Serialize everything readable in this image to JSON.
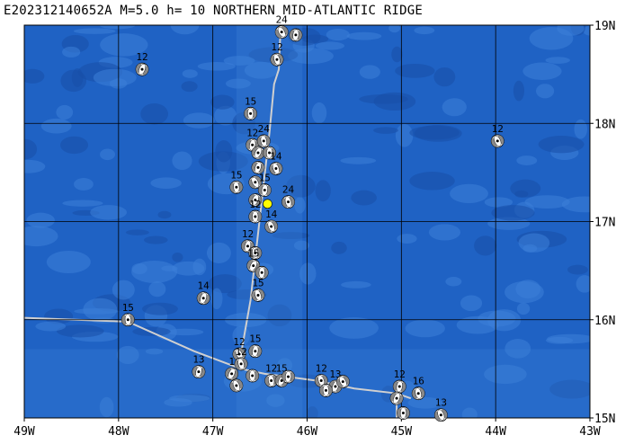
{
  "title": "E202312140652A M=5.0 h= 10 NORTHERN MID-ATLANTIC RIDGE",
  "colors": {
    "ocean": "#1f62c4",
    "ocean_shallow": "#3c80d8",
    "ocean_deep": "#174fa8",
    "grid": "#000000",
    "plate_boundary": "#d0d0d0",
    "epicenter": "#ffff00"
  },
  "map": {
    "lon_range": [
      -49,
      -43
    ],
    "lat_range": [
      15,
      19
    ],
    "lon_labels": [
      "49W",
      "48W",
      "47W",
      "46W",
      "45W",
      "44W",
      "43W"
    ],
    "lat_labels": [
      "15N",
      "16N",
      "17N",
      "18N",
      "19N"
    ],
    "epicenter": {
      "lon": -46.42,
      "lat": 17.18,
      "symbol": "star-dot"
    },
    "plate_boundary": [
      [
        [
          -49.0,
          16.02
        ],
        [
          -47.9,
          15.98
        ],
        [
          -47.2,
          15.68
        ],
        [
          -46.7,
          15.5
        ],
        [
          -46.45,
          15.45
        ],
        [
          -45.9,
          15.38
        ],
        [
          -45.5,
          15.3
        ],
        [
          -45.05,
          15.25
        ],
        [
          -44.9,
          15.2
        ]
      ],
      [
        [
          -46.72,
          15.55
        ],
        [
          -46.6,
          16.2
        ],
        [
          -46.5,
          17.05
        ],
        [
          -46.4,
          17.9
        ],
        [
          -46.35,
          18.4
        ],
        [
          -46.3,
          18.55
        ],
        [
          -46.28,
          19.0
        ]
      ],
      [
        [
          -45.05,
          15.25
        ],
        [
          -45.05,
          15.0
        ]
      ]
    ],
    "mechanisms": [
      {
        "lon": -46.27,
        "lat": 18.93,
        "depth": "24"
      },
      {
        "lon": -46.12,
        "lat": 18.9,
        "depth": ""
      },
      {
        "lon": -46.32,
        "lat": 18.65,
        "depth": "12"
      },
      {
        "lon": -47.75,
        "lat": 18.55,
        "depth": "12"
      },
      {
        "lon": -46.6,
        "lat": 18.1,
        "depth": "15"
      },
      {
        "lon": -43.98,
        "lat": 17.82,
        "depth": "12"
      },
      {
        "lon": -46.58,
        "lat": 17.78,
        "depth": "12"
      },
      {
        "lon": -46.46,
        "lat": 17.82,
        "depth": "24"
      },
      {
        "lon": -46.52,
        "lat": 17.7,
        "depth": ""
      },
      {
        "lon": -46.4,
        "lat": 17.7,
        "depth": ""
      },
      {
        "lon": -46.33,
        "lat": 17.54,
        "depth": "14"
      },
      {
        "lon": -46.52,
        "lat": 17.55,
        "depth": ""
      },
      {
        "lon": -46.75,
        "lat": 17.35,
        "depth": "15"
      },
      {
        "lon": -46.55,
        "lat": 17.4,
        "depth": ""
      },
      {
        "lon": -46.45,
        "lat": 17.32,
        "depth": "15"
      },
      {
        "lon": -46.2,
        "lat": 17.2,
        "depth": "24"
      },
      {
        "lon": -46.55,
        "lat": 17.22,
        "depth": ""
      },
      {
        "lon": -46.55,
        "lat": 17.05,
        "depth": "12"
      },
      {
        "lon": -46.38,
        "lat": 16.95,
        "depth": "14"
      },
      {
        "lon": -46.63,
        "lat": 16.75,
        "depth": "12"
      },
      {
        "lon": -46.55,
        "lat": 16.68,
        "depth": ""
      },
      {
        "lon": -46.57,
        "lat": 16.55,
        "depth": "15"
      },
      {
        "lon": -46.48,
        "lat": 16.48,
        "depth": ""
      },
      {
        "lon": -46.52,
        "lat": 16.25,
        "depth": "15"
      },
      {
        "lon": -47.1,
        "lat": 16.22,
        "depth": "14"
      },
      {
        "lon": -47.9,
        "lat": 16.0,
        "depth": "15"
      },
      {
        "lon": -46.72,
        "lat": 15.65,
        "depth": "12"
      },
      {
        "lon": -46.55,
        "lat": 15.68,
        "depth": "15"
      },
      {
        "lon": -46.7,
        "lat": 15.55,
        "depth": "12"
      },
      {
        "lon": -46.8,
        "lat": 15.45,
        "depth": "1"
      },
      {
        "lon": -46.58,
        "lat": 15.43,
        "depth": ""
      },
      {
        "lon": -46.75,
        "lat": 15.33,
        "depth": ""
      },
      {
        "lon": -47.15,
        "lat": 15.47,
        "depth": "13"
      },
      {
        "lon": -46.38,
        "lat": 15.38,
        "depth": "12"
      },
      {
        "lon": -46.27,
        "lat": 15.38,
        "depth": "15"
      },
      {
        "lon": -46.2,
        "lat": 15.42,
        "depth": ""
      },
      {
        "lon": -45.85,
        "lat": 15.38,
        "depth": "12"
      },
      {
        "lon": -45.7,
        "lat": 15.32,
        "depth": "13"
      },
      {
        "lon": -45.8,
        "lat": 15.28,
        "depth": ""
      },
      {
        "lon": -45.62,
        "lat": 15.37,
        "depth": ""
      },
      {
        "lon": -45.02,
        "lat": 15.32,
        "depth": "12"
      },
      {
        "lon": -44.82,
        "lat": 15.25,
        "depth": "16"
      },
      {
        "lon": -45.05,
        "lat": 15.2,
        "depth": ""
      },
      {
        "lon": -44.98,
        "lat": 15.05,
        "depth": ""
      },
      {
        "lon": -44.58,
        "lat": 15.03,
        "depth": "13"
      }
    ]
  }
}
